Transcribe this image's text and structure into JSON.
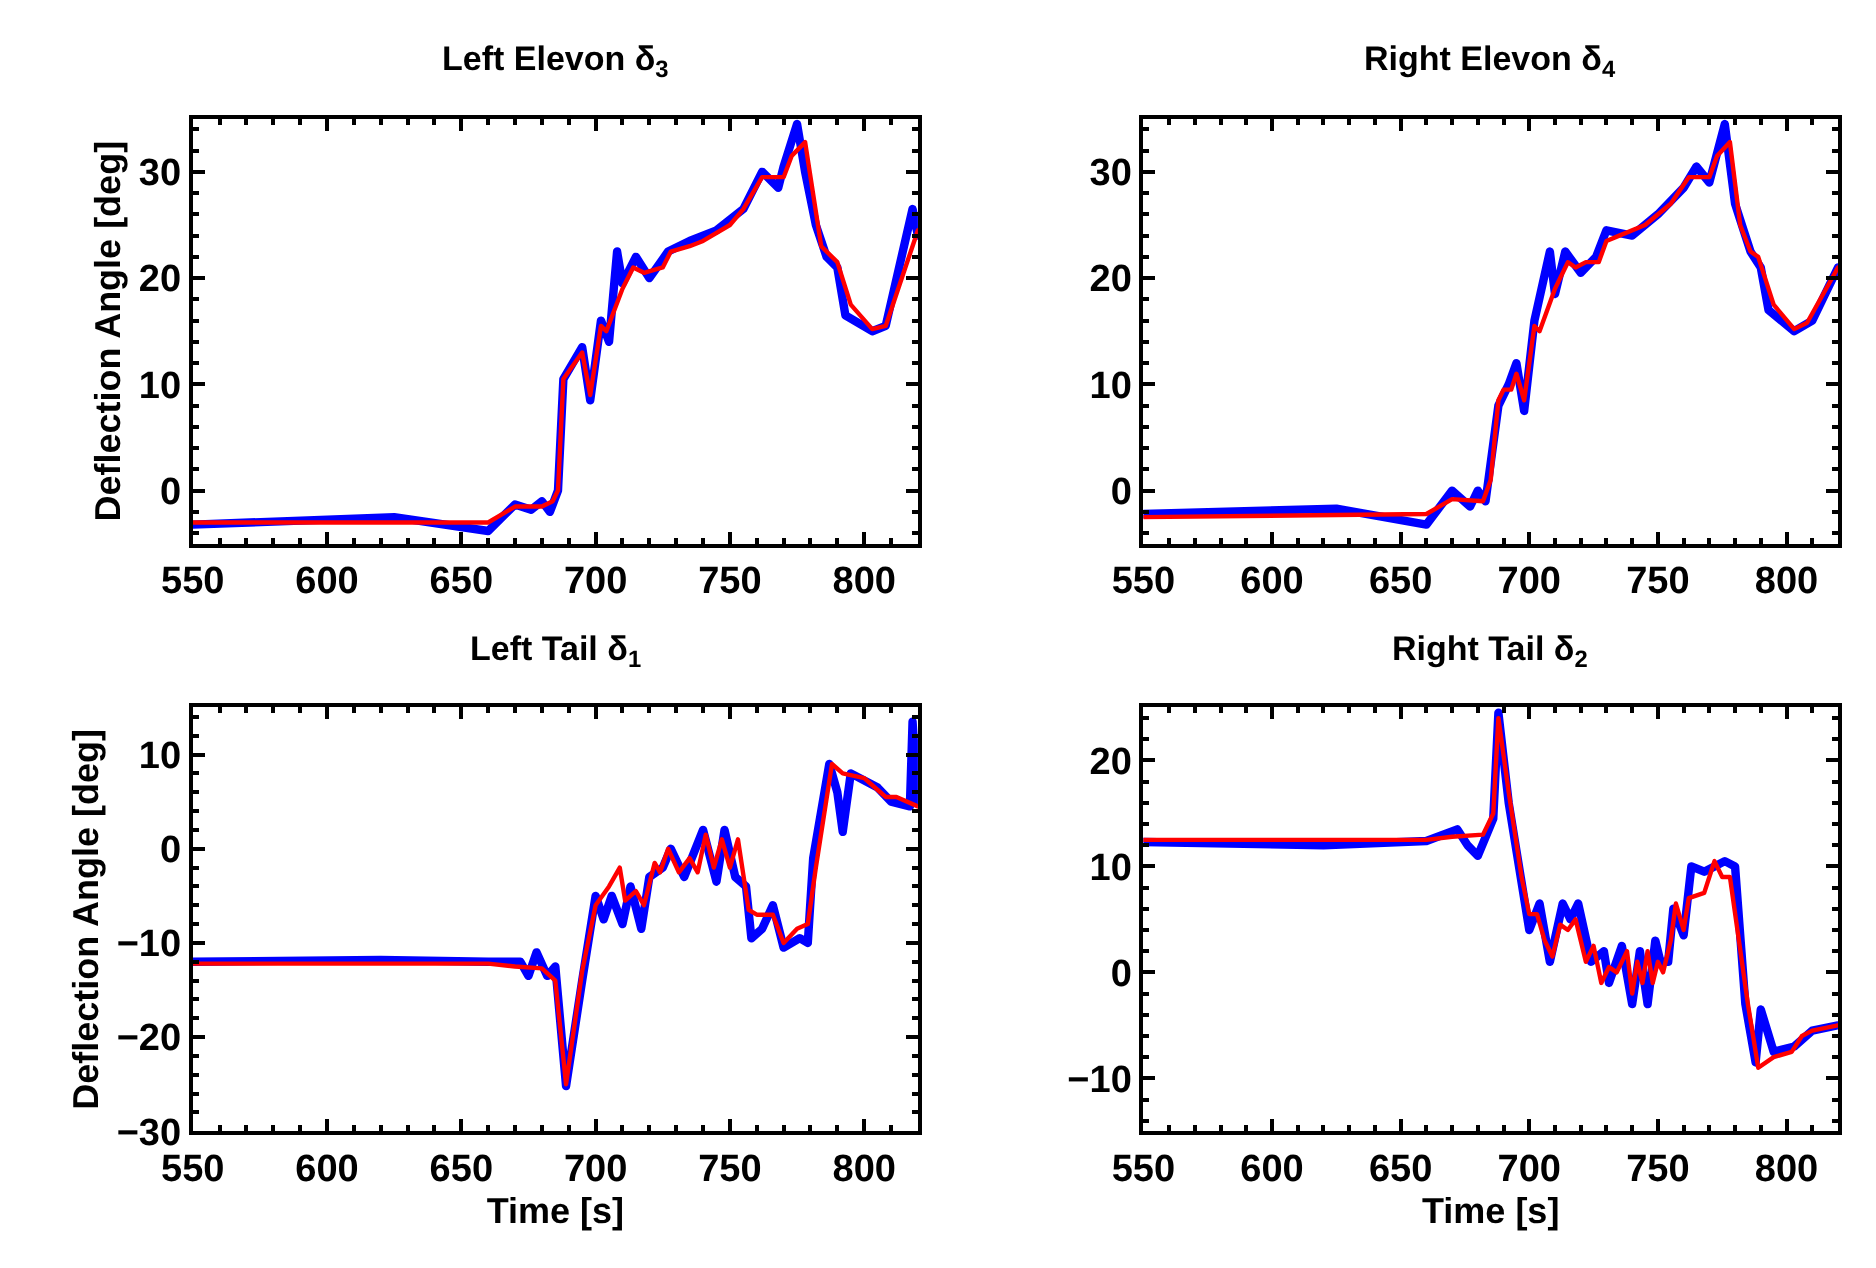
{
  "chart_data": [
    {
      "type": "line",
      "title": "Left Elevon δ$_{3}$",
      "ylabel": "Deflection Angle [deg]",
      "xlim": [
        550,
        820
      ],
      "xticks": [
        550,
        600,
        650,
        700,
        750,
        800
      ],
      "ylim": [
        -5,
        35
      ],
      "yticks": [
        0,
        10,
        20,
        30
      ],
      "marker": "none",
      "line_style": "solid",
      "series": [
        {
          "color": "#0000ff",
          "x": [
            550,
            625,
            660,
            670,
            676,
            680,
            683,
            686,
            688,
            695,
            698,
            702,
            705,
            708,
            710,
            715,
            720,
            727,
            735,
            745,
            755,
            762,
            768,
            770,
            775,
            778,
            782,
            786,
            790,
            793,
            803,
            808,
            818,
            820
          ],
          "values": [
            -3.2,
            -2.5,
            -3.8,
            -1.3,
            -1.8,
            -1,
            -2,
            0,
            10.5,
            13.5,
            8.5,
            16,
            14,
            22.5,
            19.5,
            22,
            20,
            22.5,
            23.5,
            24.5,
            26.5,
            30,
            28.5,
            30.5,
            34.5,
            30,
            25,
            22,
            21,
            16.5,
            15,
            15.5,
            26.5,
            24
          ]
        },
        {
          "color": "#ff0000",
          "x": [
            550,
            660,
            670,
            680,
            684,
            686,
            688,
            695,
            698,
            702,
            704,
            710,
            714,
            718,
            725,
            728,
            735,
            740,
            750,
            755,
            762,
            770,
            773,
            778,
            784,
            788,
            790,
            795,
            803,
            808,
            820
          ],
          "values": [
            -3,
            -3,
            -1.5,
            -1.5,
            -1,
            0,
            10.5,
            13,
            9,
            15.5,
            15,
            19,
            21,
            20.5,
            21,
            22.5,
            23,
            23.5,
            25,
            26.5,
            29.5,
            29.5,
            31.5,
            32.8,
            23,
            22,
            21.5,
            17.5,
            15.2,
            15.5,
            24.5
          ]
        }
      ]
    },
    {
      "type": "line",
      "title": "Right Elevon δ$_{4}$",
      "xlim": [
        550,
        820
      ],
      "xticks": [
        550,
        600,
        650,
        700,
        750,
        800
      ],
      "ylim": [
        -5,
        35
      ],
      "yticks": [
        0,
        10,
        20,
        30
      ],
      "marker": "none",
      "line_style": "solid",
      "series": [
        {
          "color": "#0000ff",
          "x": [
            550,
            625,
            660,
            670,
            677,
            680,
            683,
            688,
            692,
            695,
            698,
            702,
            708,
            710,
            714,
            720,
            726,
            730,
            740,
            750,
            760,
            765,
            770,
            776,
            780,
            782,
            786,
            790,
            793,
            803,
            810,
            820
          ],
          "values": [
            -2.2,
            -1.7,
            -3.2,
            0,
            -1.5,
            0,
            -1,
            8,
            10,
            12,
            7.5,
            16,
            22.5,
            18.5,
            22.5,
            20.5,
            22,
            24.5,
            24,
            26,
            28.5,
            30.5,
            29,
            34.5,
            27,
            25.5,
            22.5,
            21,
            17,
            15,
            16,
            21
          ]
        },
        {
          "color": "#ff0000",
          "x": [
            550,
            660,
            670,
            682,
            685,
            688,
            690,
            693,
            695,
            698,
            702,
            704,
            710,
            715,
            718,
            722,
            727,
            730,
            735,
            745,
            755,
            762,
            770,
            773,
            778,
            782,
            786,
            789,
            795,
            803,
            808,
            820
          ],
          "values": [
            -2.5,
            -2.2,
            -0.8,
            -1,
            1,
            8.5,
            9.5,
            9.5,
            11,
            8.5,
            15.5,
            15,
            19,
            21.5,
            21,
            21.5,
            21.5,
            23.5,
            24,
            25,
            27,
            29.5,
            29.5,
            31.5,
            32.8,
            25,
            22.5,
            22,
            17.5,
            15.2,
            15.8,
            21
          ]
        }
      ]
    },
    {
      "type": "line",
      "title": "Left Tail δ$_{1}$",
      "xlabel": "Time [s]",
      "ylabel": "Deflection Angle [deg]",
      "xlim": [
        550,
        820
      ],
      "xticks": [
        550,
        600,
        650,
        700,
        750,
        800
      ],
      "ylim": [
        -30,
        15
      ],
      "yticks": [
        -30,
        -20,
        -10,
        0,
        10
      ],
      "marker": "none",
      "line_style": "solid",
      "series": [
        {
          "color": "#0000ff",
          "x": [
            550,
            620,
            660,
            672,
            675,
            678,
            682,
            685,
            689,
            695,
            700,
            703,
            706,
            710,
            713,
            717,
            720,
            725,
            728,
            733,
            740,
            745,
            748,
            752,
            756,
            758,
            762,
            766,
            770,
            776,
            779,
            781,
            787,
            790,
            792,
            795,
            805,
            810,
            817,
            818,
            820
          ],
          "values": [
            -12,
            -11.8,
            -12,
            -12,
            -13.5,
            -11,
            -13.5,
            -12.5,
            -25.2,
            -14,
            -5,
            -7.5,
            -5,
            -8,
            -4,
            -8.5,
            -3,
            -2,
            0,
            -3,
            2,
            -3.5,
            2,
            -3,
            -4,
            -9.5,
            -8.5,
            -6,
            -10.5,
            -9.5,
            -10,
            -1,
            9,
            6,
            1.8,
            8,
            6.5,
            5,
            4.5,
            13.5,
            5
          ]
        },
        {
          "color": "#ff0000",
          "x": [
            550,
            660,
            670,
            680,
            685,
            689,
            695,
            700,
            705,
            709,
            711,
            715,
            718,
            722,
            724,
            727,
            731,
            735,
            738,
            741,
            744,
            747,
            750,
            753,
            757,
            760,
            766,
            770,
            775,
            779,
            782,
            788,
            792,
            800,
            806,
            808,
            812,
            820
          ],
          "values": [
            -12.2,
            -12.2,
            -12.5,
            -12.7,
            -14,
            -25,
            -13,
            -6,
            -4,
            -2,
            -5.5,
            -4.5,
            -6,
            -1.5,
            -2.5,
            0,
            -2.5,
            -1,
            -2.5,
            1.5,
            -2,
            1,
            -2,
            1,
            -6.5,
            -7,
            -7,
            -10,
            -8.5,
            -8,
            -2,
            9,
            8,
            7.5,
            6,
            5.5,
            5.5,
            4.5
          ]
        }
      ]
    },
    {
      "type": "line",
      "title": "Right Tail δ$_{2}$",
      "xlabel": "Time [s]",
      "xlim": [
        550,
        820
      ],
      "xticks": [
        550,
        600,
        650,
        700,
        750,
        800
      ],
      "ylim": [
        -15,
        25
      ],
      "yticks": [
        -10,
        0,
        10,
        20
      ],
      "marker": "none",
      "line_style": "solid",
      "series": [
        {
          "color": "#0000ff",
          "x": [
            550,
            620,
            660,
            672,
            676,
            680,
            686,
            688,
            692,
            700,
            704,
            708,
            713,
            716,
            719,
            724,
            729,
            731,
            736,
            740,
            743,
            746,
            749,
            751,
            754,
            756,
            760,
            763,
            768,
            772,
            776,
            780,
            784,
            788,
            790,
            795,
            803,
            810,
            820
          ],
          "values": [
            12.3,
            12,
            12.4,
            13.5,
            12,
            11,
            14.5,
            24.5,
            16,
            4,
            6.5,
            1,
            6.5,
            5,
            6.5,
            1,
            2,
            -1,
            2.5,
            -3,
            2,
            -3,
            3,
            1,
            1,
            6,
            3.5,
            10,
            9.5,
            10,
            10.5,
            10,
            -3,
            -8.5,
            -3.5,
            -7.5,
            -7,
            -5.5,
            -5
          ]
        },
        {
          "color": "#ff0000",
          "x": [
            550,
            660,
            670,
            682,
            686,
            688,
            692,
            697,
            700,
            703,
            706,
            709,
            712,
            715,
            718,
            722,
            725,
            728,
            731,
            734,
            738,
            740,
            742,
            744,
            746,
            748,
            750,
            752,
            755,
            757,
            760,
            762,
            768,
            770,
            772,
            775,
            778,
            785,
            789,
            795,
            802,
            806,
            810,
            820
          ],
          "values": [
            12.5,
            12.5,
            12.8,
            13,
            15,
            24,
            17,
            9,
            5.5,
            5.5,
            3,
            1.5,
            4.5,
            4,
            5,
            1,
            2.5,
            -1,
            0.5,
            0,
            2,
            -2,
            1,
            -1,
            2,
            -1,
            1,
            0,
            3,
            6.5,
            4,
            7,
            7.5,
            9,
            10.5,
            9,
            9,
            -3,
            -9,
            -8,
            -7.5,
            -6,
            -5.5,
            -5
          ]
        }
      ]
    }
  ]
}
